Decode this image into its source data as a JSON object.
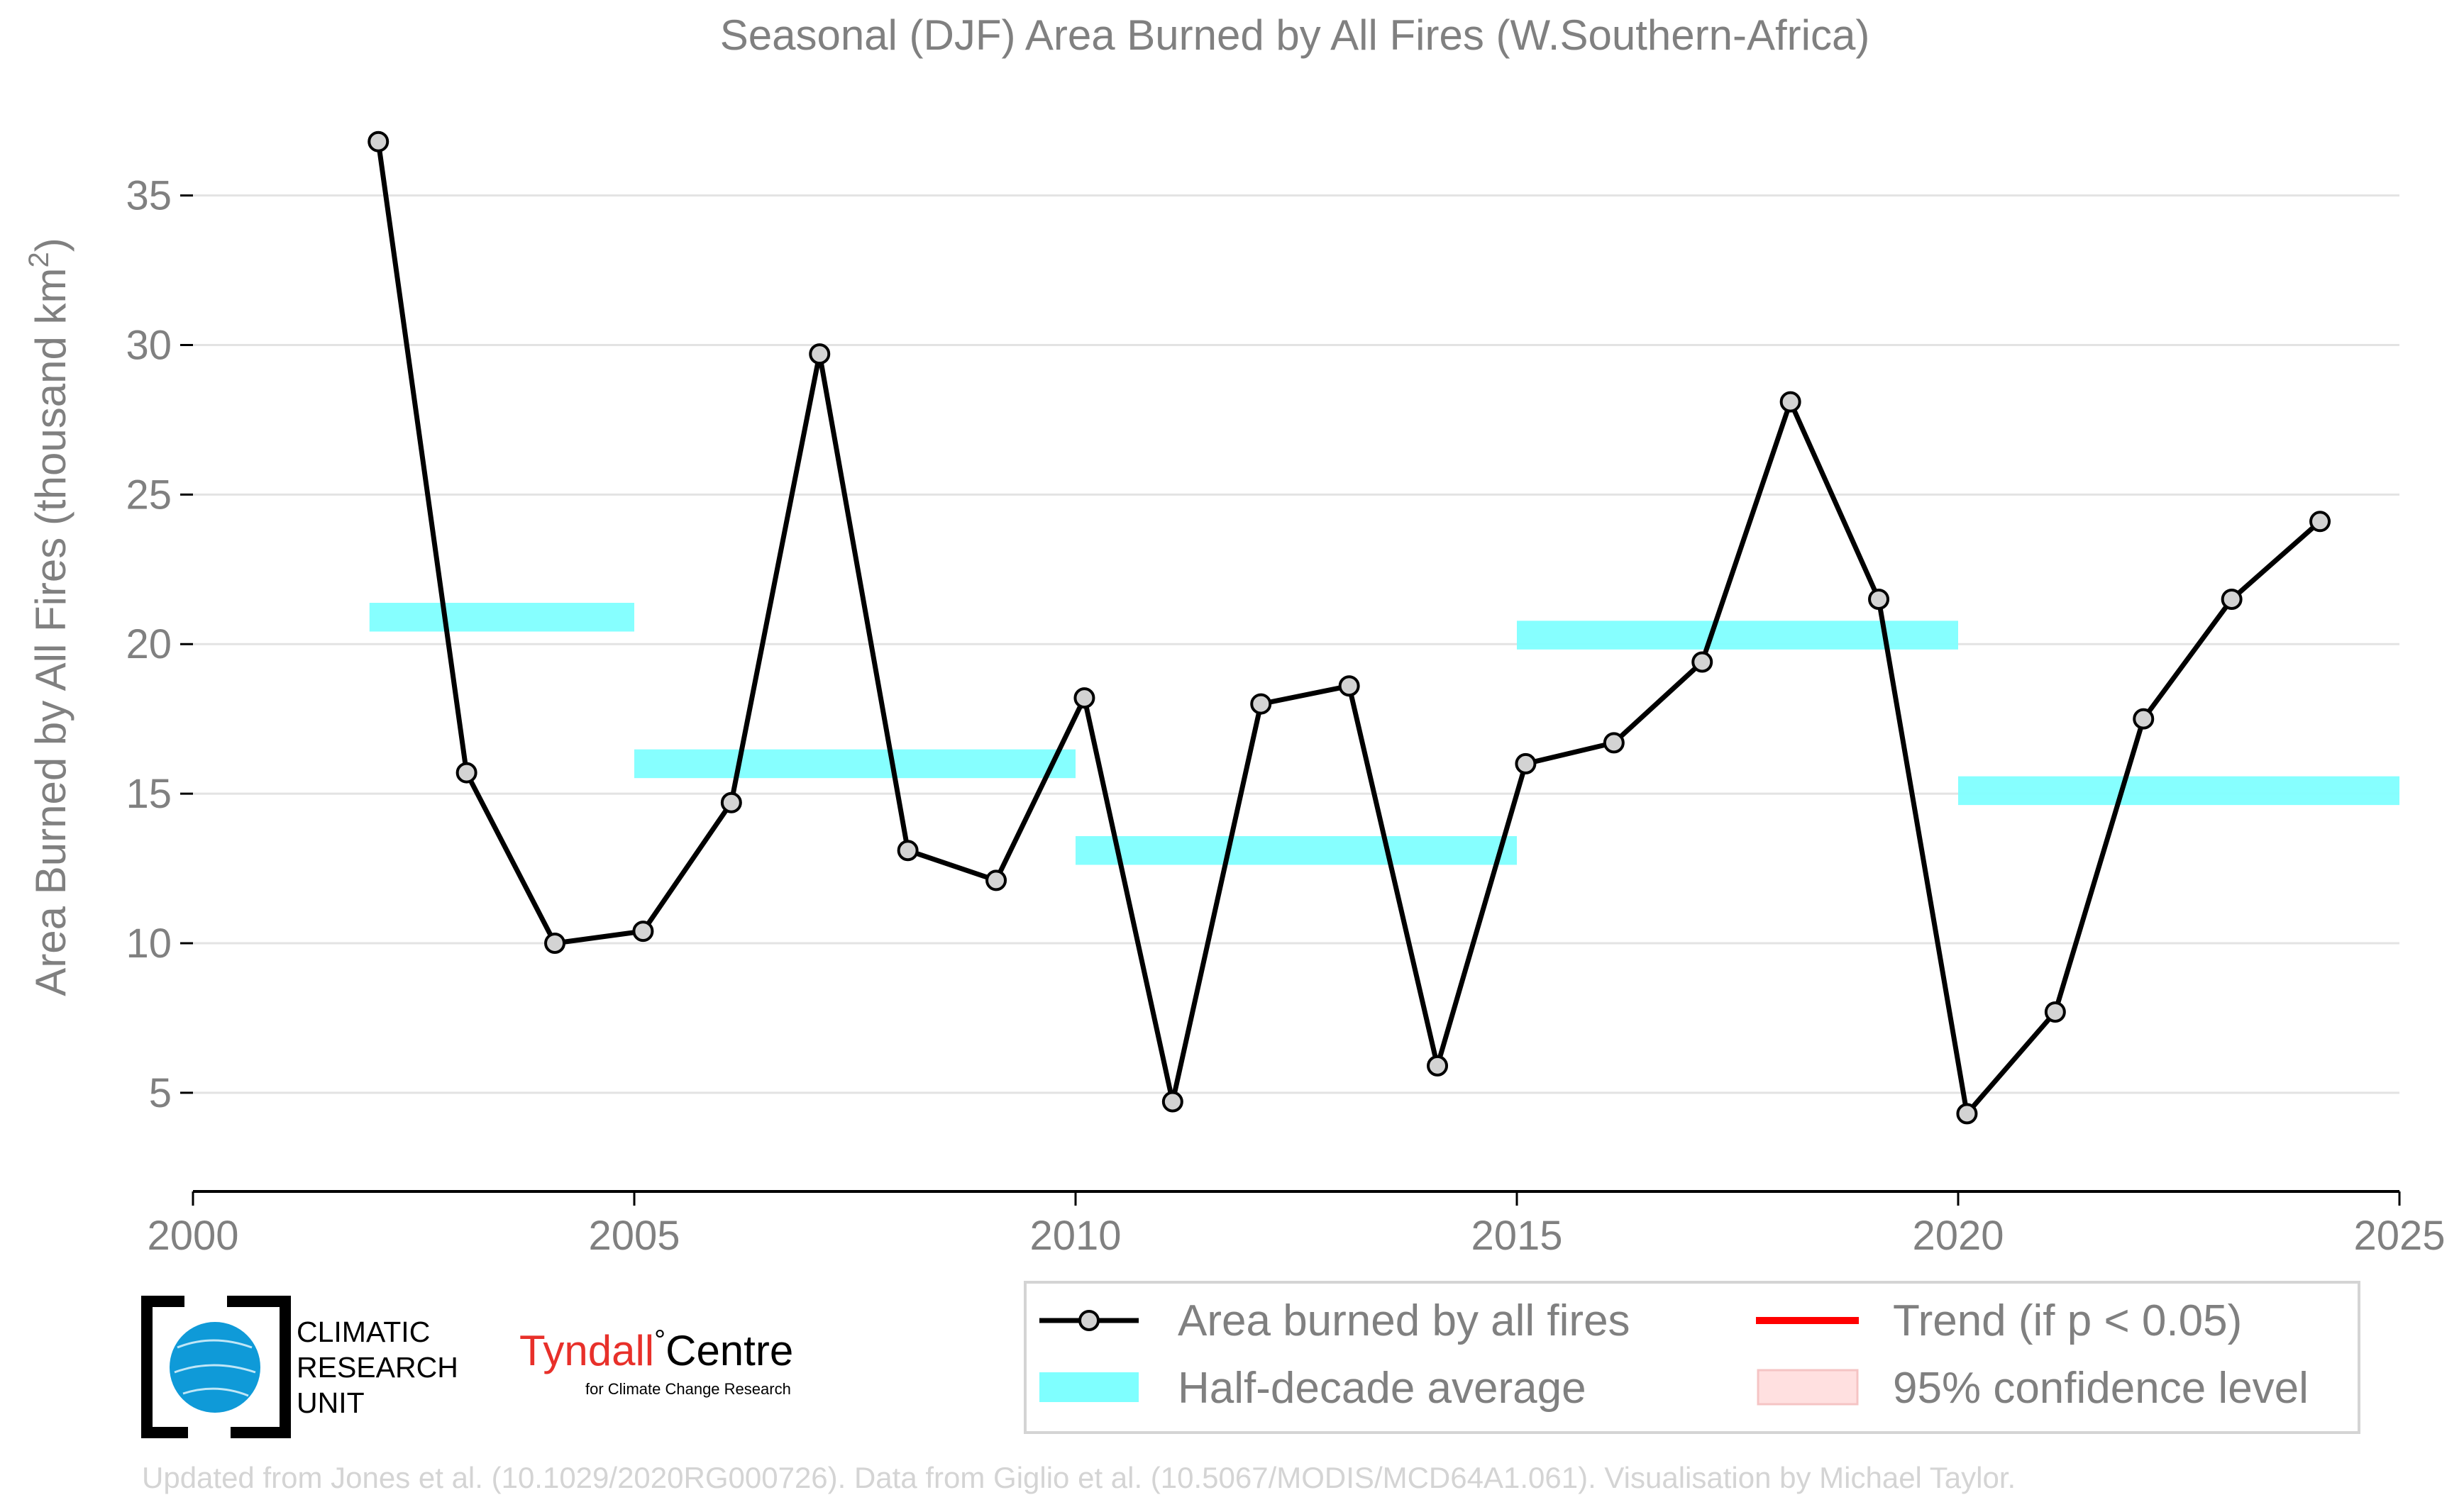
{
  "chart_data": {
    "type": "line",
    "title": "Seasonal (DJF) Area Burned by All Fires (W.Southern-Africa)",
    "ylabel_main": "Area Burned by All Fires (thousand km",
    "ylabel_sup": "2",
    "ylabel_close": ")",
    "xlim": [
      2000,
      2025
    ],
    "ylim": [
      1.7,
      38.5
    ],
    "x_ticks": [
      2000,
      2005,
      2010,
      2015,
      2020,
      2025
    ],
    "y_ticks": [
      5,
      10,
      15,
      20,
      25,
      30,
      35
    ],
    "grid": "horizontal",
    "series": [
      {
        "name": "Area burned by all fires",
        "color": "#000000",
        "marker_fill": "#d3d3d3",
        "x": [
          2002.1,
          2003.1,
          2004.1,
          2005.1,
          2006.1,
          2007.1,
          2008.1,
          2009.1,
          2010.1,
          2011.1,
          2012.1,
          2013.1,
          2014.1,
          2015.1,
          2016.1,
          2017.1,
          2018.1,
          2019.1,
          2020.1,
          2021.1,
          2022.1,
          2023.1,
          2024.1
        ],
        "y": [
          36.8,
          15.7,
          10.0,
          10.4,
          14.7,
          29.7,
          13.1,
          12.1,
          18.2,
          4.7,
          18.0,
          18.6,
          5.9,
          16.0,
          16.7,
          19.4,
          28.1,
          21.5,
          4.3,
          7.7,
          17.5,
          21.5,
          24.1
        ]
      }
    ],
    "half_decade_average": {
      "name": "Half-decade average",
      "color": "#7fffff",
      "segments": [
        {
          "x0": 2002,
          "x1": 2005,
          "y": 20.9
        },
        {
          "x0": 2005,
          "x1": 2010,
          "y": 16.0
        },
        {
          "x0": 2010,
          "x1": 2015,
          "y": 13.1
        },
        {
          "x0": 2015,
          "x1": 2020,
          "y": 20.3
        },
        {
          "x0": 2020,
          "x1": 2025,
          "y": 15.1
        }
      ]
    },
    "legend": {
      "placement": "bottom-right",
      "entries": [
        {
          "label": "Area burned by all fires"
        },
        {
          "label": "Trend (if p < 0.05)",
          "color": "#ff0000"
        },
        {
          "label": "Half-decade average"
        },
        {
          "label": "95% confidence level",
          "color": "#ffe0e0"
        }
      ]
    }
  },
  "logos": {
    "cru": [
      "CLIMATIC",
      "RESEARCH",
      "UNIT"
    ],
    "tyndall_main": "Tyndall",
    "tyndall_degree": "°",
    "tyndall_centre": "Centre",
    "tyndall_sub": "for Climate Change Research"
  },
  "footer": "Updated from Jones et al. (10.1029/2020RG000726). Data from Giglio et al. (10.5067/MODIS/MCD64A1.061). Visualisation by Michael Taylor."
}
